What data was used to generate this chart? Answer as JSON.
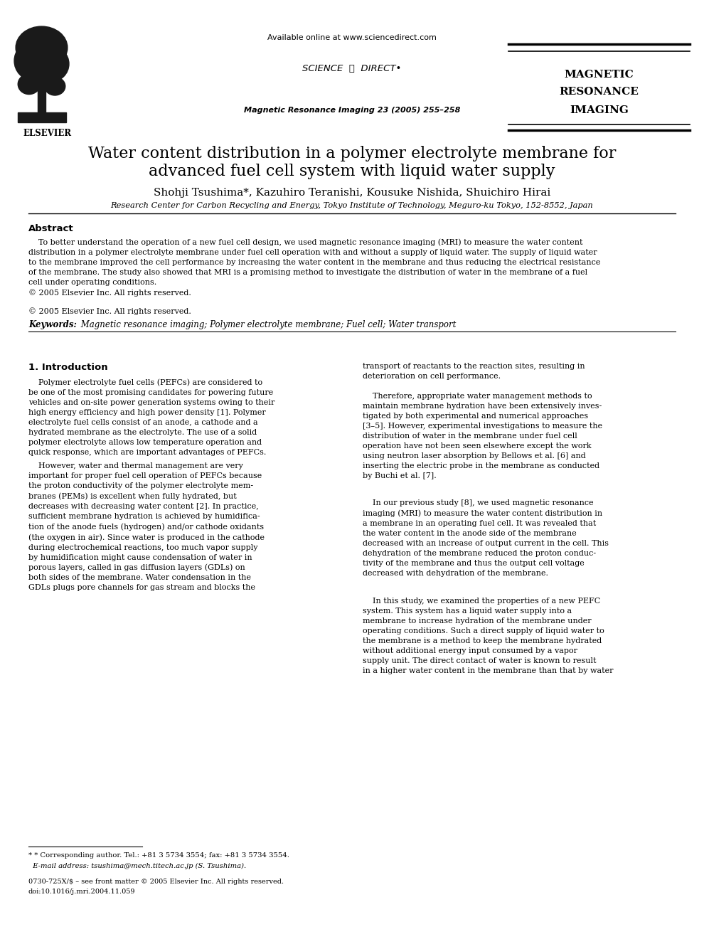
{
  "background_color": "#ffffff",
  "page_width": 9.9,
  "page_height": 13.2,
  "header": {
    "available_online": "Available online at www.sciencedirect.com",
    "journal_line": "Magnetic Resonance Imaging 23 (2005) 255–258",
    "mri_lines": [
      "MAGNETIC",
      "RESONANCE",
      "IMAGING"
    ]
  },
  "title_line1": "Water content distribution in a polymer electrolyte membrane for",
  "title_line2": "advanced fuel cell system with liquid water supply",
  "authors": "Shohji Tsushima*, Kazuhiro Teranishi, Kousuke Nishida, Shuichiro Hirai",
  "affiliation": "Research Center for Carbon Recycling and Energy, Tokyo Institute of Technology, Meguro-ku Tokyo, 152-8552, Japan",
  "abstract_title": "Abstract",
  "keywords_label": "Keywords:",
  "keywords_text": " Magnetic resonance imaging; Polymer electrolyte membrane; Fuel cell; Water transport",
  "section1_title": "1. Introduction",
  "footnote_line1": "* Corresponding author. Tel.: +81 3 5734 3554; fax: +81 3 5734 3554.",
  "footnote_line2": "E-mail address: tsushima@mech.titech.ac.jp (S. Tsushima).",
  "copyright_line1": "0730-725X/$ – see front matter © 2005 Elsevier Inc. All rights reserved.",
  "copyright_line2": "doi:10.1016/j.mri.2004.11.059",
  "col1_intro_p1": "    Polymer electrolyte fuel cells (PEFCs) are considered to\nbe one of the most promising candidates for powering future\nvehicles and on-site power generation systems owing to their\nhigh energy efficiency and high power density [1]. Polymer\nelectrolyte fuel cells consist of an anode, a cathode and a\nhydrated membrane as the electrolyte. The use of a solid\npolymer electrolyte allows low temperature operation and\nquick response, which are important advantages of PEFCs.",
  "col1_intro_p2": "    However, water and thermal management are very\nimportant for proper fuel cell operation of PEFCs because\nthe proton conductivity of the polymer electrolyte mem-\nbranes (PEMs) is excellent when fully hydrated, but\ndecreases with decreasing water content [2]. In practice,\nsufficient membrane hydration is achieved by humidifica-\ntion of the anode fuels (hydrogen) and/or cathode oxidants\n(the oxygen in air). Since water is produced in the cathode\nduring electrochemical reactions, too much vapor supply\nby humidification might cause condensation of water in\nporous layers, called in gas diffusion layers (GDLs) on\nboth sides of the membrane. Water condensation in the\nGDLs plugs pore channels for gas stream and blocks the",
  "col2_intro_p1": "transport of reactants to the reaction sites, resulting in\ndeterioration on cell performance.",
  "col2_intro_p2": "    Therefore, appropriate water management methods to\nmaintain membrane hydration have been extensively inves-\ntigated by both experimental and numerical approaches\n[3–5]. However, experimental investigations to measure the\ndistribution of water in the membrane under fuel cell\noperation have not been seen elsewhere except the work\nusing neutron laser absorption by Bellows et al. [6] and\ninserting the electric probe in the membrane as conducted\nby Buchi et al. [7].",
  "col2_intro_p3": "    In our previous study [8], we used magnetic resonance\nimaging (MRI) to measure the water content distribution in\na membrane in an operating fuel cell. It was revealed that\nthe water content in the anode side of the membrane\ndecreased with an increase of output current in the cell. This\ndehydration of the membrane reduced the proton conduc-\ntivity of the membrane and thus the output cell voltage\ndecreased with dehydration of the membrane.",
  "col2_intro_p4": "    In this study, we examined the properties of a new PEFC\nsystem. This system has a liquid water supply into a\nmembrane to increase hydration of the membrane under\noperating conditions. Such a direct supply of liquid water to\nthe membrane is a method to keep the membrane hydrated\nwithout additional energy input consumed by a vapor\nsupply unit. The direct contact of water is known to result\nin a higher water content in the membrane than that by water",
  "abstract_body": "    To better understand the operation of a new fuel cell design, we used magnetic resonance imaging (MRI) to measure the water content\ndistribution in a polymer electrolyte membrane under fuel cell operation with and without a supply of liquid water. The supply of liquid water\nto the membrane improved the cell performance by increasing the water content in the membrane and thus reducing the electrical resistance\nof the membrane. The study also showed that MRI is a promising method to investigate the distribution of water in the membrane of a fuel\ncell under operating conditions.\n© 2005 Elsevier Inc. All rights reserved."
}
